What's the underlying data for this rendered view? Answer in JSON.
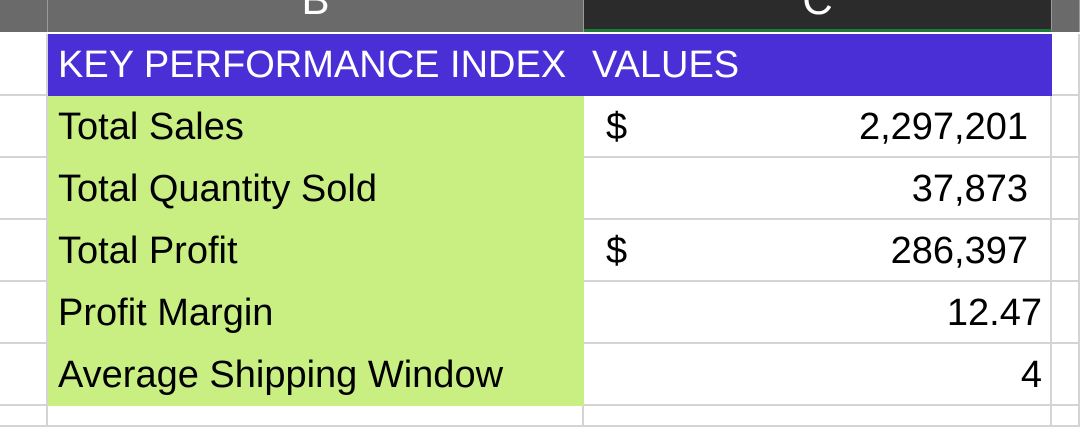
{
  "columns": {
    "b": "B",
    "c": "C"
  },
  "table": {
    "header": {
      "kpi_label": "KEY PERFORMANCE INDEX",
      "values_label": "VALUES"
    },
    "rows": [
      {
        "label": "Total Sales",
        "currency": "$",
        "value": "2,297,201"
      },
      {
        "label": "Total Quantity Sold",
        "currency": "",
        "value": "37,873"
      },
      {
        "label": "Total Profit",
        "currency": "$",
        "value": "286,397"
      },
      {
        "label": "Profit Margin",
        "currency": "",
        "value": "12.47"
      },
      {
        "label": "Average Shipping Window",
        "currency": "",
        "value": "4"
      }
    ]
  },
  "colors": {
    "header_fill": "#4a2fd6",
    "kpi_fill": "#c9ef82",
    "active_column_header": "#2b2b2b",
    "selection_accent": "#1e7a3a"
  }
}
